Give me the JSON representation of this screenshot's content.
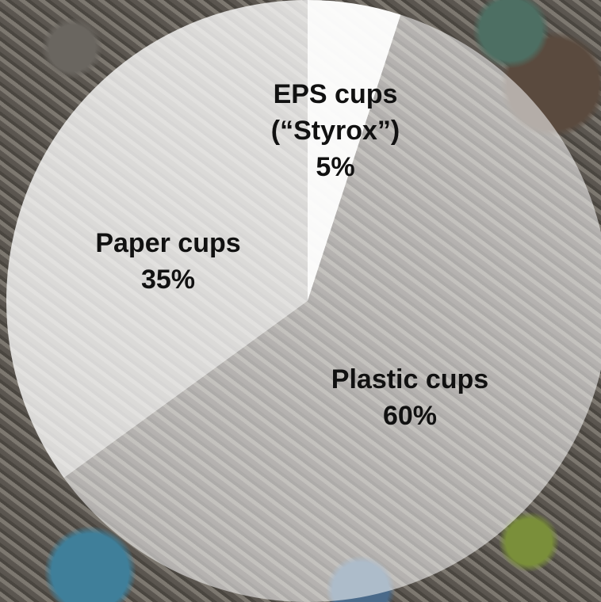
{
  "chart_data": {
    "type": "pie",
    "slices": [
      {
        "label_lines": [
          "EPS cups",
          "(“Styrox”)",
          "5%"
        ],
        "value": 5,
        "color": "#ffffff",
        "opacity": 0.97
      },
      {
        "label_lines": [
          "Plastic cups",
          "60%"
        ],
        "value": 60,
        "color": "#ffffff",
        "opacity": 0.55
      },
      {
        "label_lines": [
          "Paper cups",
          "35%"
        ],
        "value": 35,
        "color": "#ffffff",
        "opacity": 0.78
      }
    ],
    "start_angle_deg": 0,
    "direction": "clockwise",
    "background": "photo of waste-covered shoreline"
  }
}
